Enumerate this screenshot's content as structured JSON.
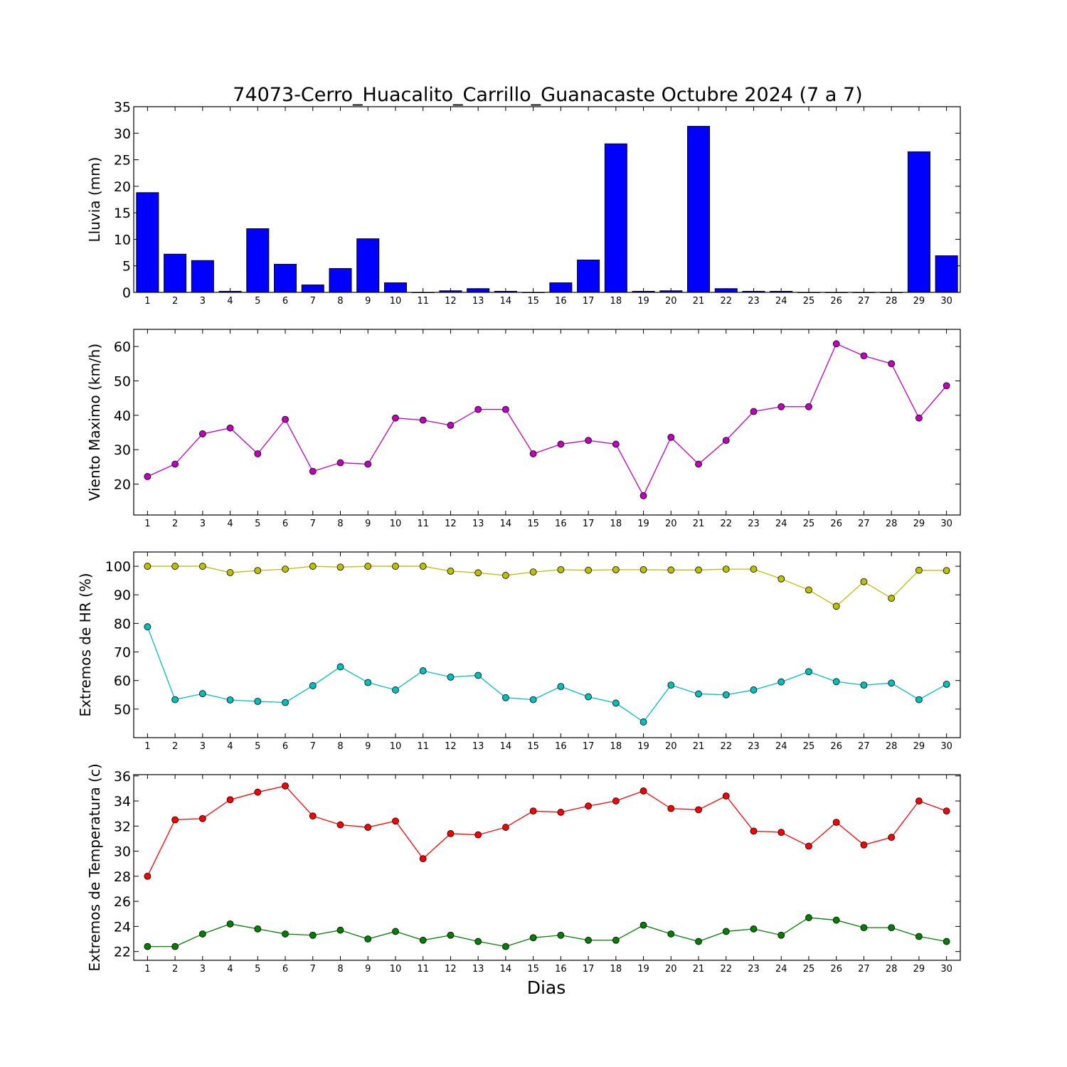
{
  "figure": {
    "title": "74073-Cerro_Huacalito_Carrillo_Guanacaste Octubre 2024  (7 a 7)",
    "xlabel": "Dias"
  },
  "chart_data": [
    {
      "type": "bar",
      "ylabel": "Lluvia (mm)",
      "x": [
        1,
        2,
        3,
        4,
        5,
        6,
        7,
        8,
        9,
        10,
        11,
        12,
        13,
        14,
        15,
        16,
        17,
        18,
        19,
        20,
        21,
        22,
        23,
        24,
        25,
        26,
        27,
        28,
        29,
        30
      ],
      "xlim": [
        0.5,
        30.5
      ],
      "ylim": [
        0,
        35
      ],
      "yticks": [
        0,
        5,
        10,
        15,
        20,
        25,
        30,
        35
      ],
      "colors": {
        "fill": "#0000ff",
        "edge": "#000000"
      },
      "series": [
        {
          "values": [
            18.8,
            7.2,
            6.0,
            0.2,
            12.0,
            5.3,
            1.4,
            4.5,
            10.1,
            1.8,
            0,
            0.3,
            0.7,
            0.2,
            0,
            1.8,
            6.1,
            28.0,
            0.2,
            0.3,
            31.3,
            0.7,
            0.2,
            0.2,
            0,
            0,
            0,
            0,
            26.5,
            6.9
          ]
        }
      ]
    },
    {
      "type": "line",
      "ylabel": "Viento Maximo (km/h)",
      "x": [
        1,
        2,
        3,
        4,
        5,
        6,
        7,
        8,
        9,
        10,
        11,
        12,
        13,
        14,
        15,
        16,
        17,
        18,
        19,
        20,
        21,
        22,
        23,
        24,
        25,
        26,
        27,
        28,
        29,
        30
      ],
      "xlim": [
        0.5,
        30.5
      ],
      "ylim": [
        11,
        65
      ],
      "yticks": [
        20,
        30,
        40,
        50,
        60
      ],
      "series": [
        {
          "color": "#bf00bf",
          "values": [
            22.2,
            25.8,
            34.6,
            36.3,
            28.8,
            38.8,
            23.7,
            26.2,
            25.8,
            39.2,
            38.6,
            37.1,
            41.7,
            41.7,
            28.8,
            31.6,
            32.7,
            31.6,
            16.6,
            33.6,
            25.8,
            32.7,
            41.1,
            42.5,
            42.5,
            60.8,
            57.3,
            55.0,
            39.2,
            48.6
          ]
        }
      ]
    },
    {
      "type": "line",
      "ylabel": "Extremos de HR (%)",
      "x": [
        1,
        2,
        3,
        4,
        5,
        6,
        7,
        8,
        9,
        10,
        11,
        12,
        13,
        14,
        15,
        16,
        17,
        18,
        19,
        20,
        21,
        22,
        23,
        24,
        25,
        26,
        27,
        28,
        29,
        30
      ],
      "xlim": [
        0.5,
        30.5
      ],
      "ylim": [
        40,
        105
      ],
      "yticks": [
        50,
        60,
        70,
        80,
        90,
        100
      ],
      "series": [
        {
          "color": "#bfbf00",
          "values": [
            100,
            100,
            100,
            97.8,
            98.5,
            99,
            100,
            99.7,
            100,
            100,
            100,
            98.3,
            97.7,
            96.8,
            98,
            98.8,
            98.6,
            98.8,
            98.8,
            98.7,
            98.7,
            99,
            99,
            95.6,
            91.7,
            86,
            94.6,
            88.8,
            98.6,
            98.5
          ]
        },
        {
          "color": "#00bfbf",
          "values": [
            78.8,
            53.3,
            55.4,
            53.2,
            52.7,
            52.3,
            58.2,
            64.8,
            59.3,
            56.7,
            63.4,
            61.2,
            61.8,
            54.0,
            53.3,
            57.9,
            54.3,
            52.1,
            45.5,
            58.4,
            55.3,
            55.0,
            56.7,
            59.5,
            63.1,
            59.6,
            58.4,
            59.1,
            53.3,
            58.7
          ]
        }
      ]
    },
    {
      "type": "line",
      "ylabel": "Extremos de Temperatura (c)",
      "x": [
        1,
        2,
        3,
        4,
        5,
        6,
        7,
        8,
        9,
        10,
        11,
        12,
        13,
        14,
        15,
        16,
        17,
        18,
        19,
        20,
        21,
        22,
        23,
        24,
        25,
        26,
        27,
        28,
        29,
        30
      ],
      "xlim": [
        0.5,
        30.5
      ],
      "ylim": [
        21.3,
        36.1
      ],
      "yticks": [
        22,
        24,
        26,
        28,
        30,
        32,
        34,
        36
      ],
      "series": [
        {
          "color": "#ff0000",
          "values": [
            28.0,
            32.5,
            32.6,
            34.1,
            34.7,
            35.2,
            32.8,
            32.1,
            31.9,
            32.4,
            29.4,
            31.4,
            31.3,
            31.9,
            33.2,
            33.1,
            33.6,
            34.0,
            34.8,
            33.4,
            33.3,
            34.4,
            31.6,
            31.5,
            30.4,
            32.3,
            30.5,
            31.1,
            34.0,
            33.2
          ]
        },
        {
          "color": "#008000",
          "values": [
            22.4,
            22.4,
            23.4,
            24.2,
            23.8,
            23.4,
            23.3,
            23.7,
            23.0,
            23.6,
            22.9,
            23.3,
            22.8,
            22.4,
            23.1,
            23.3,
            22.9,
            22.9,
            24.1,
            23.4,
            22.8,
            23.6,
            23.8,
            23.3,
            24.7,
            24.5,
            23.9,
            23.9,
            23.2,
            22.8
          ]
        }
      ]
    }
  ]
}
